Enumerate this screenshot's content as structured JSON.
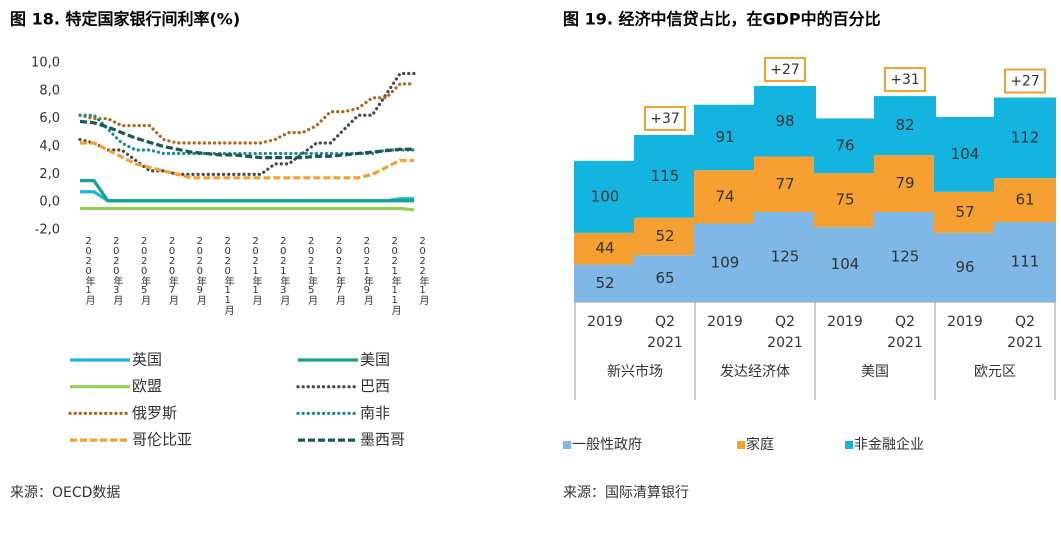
{
  "chart_data": [
    {
      "type": "line",
      "title": "图 18. 特定国家银行间利率(%)",
      "source": "来源：OECD数据",
      "categories": [
        "2020年1月",
        null,
        "2020年3月",
        null,
        "2020年5月",
        null,
        "2020年7月",
        null,
        "2020年9月",
        null,
        "2020年11月",
        null,
        "2021年1月",
        null,
        "2021年3月",
        null,
        "2021年5月",
        null,
        "2021年7月",
        null,
        "2021年9月",
        null,
        "2021年11月",
        null,
        "2022年1月"
      ],
      "ylim": [
        -2,
        10
      ],
      "yticks": [
        {
          "value": 10,
          "label": "10,0"
        },
        {
          "value": 8,
          "label": "8,0"
        },
        {
          "value": 6,
          "label": "6,0"
        },
        {
          "value": 4,
          "label": "4,0"
        },
        {
          "value": 2,
          "label": "2,0"
        },
        {
          "value": 0,
          "label": "0,0"
        },
        {
          "value": -2,
          "label": "-2,0"
        }
      ],
      "grid": false,
      "series": [
        {
          "name": "英国",
          "color": "#1fb5e0",
          "style": "solid",
          "values": [
            0.75,
            0.75,
            0.1,
            0.1,
            0.1,
            0.1,
            0.1,
            0.1,
            0.1,
            0.1,
            0.1,
            0.1,
            0.1,
            0.1,
            0.1,
            0.1,
            0.1,
            0.1,
            0.1,
            0.1,
            0.1,
            0.1,
            0.1,
            0.25,
            0.25
          ]
        },
        {
          "name": "美国",
          "color": "#12a58a",
          "style": "solid",
          "values": [
            1.55,
            1.55,
            0.1,
            0.1,
            0.1,
            0.1,
            0.1,
            0.1,
            0.1,
            0.1,
            0.1,
            0.1,
            0.1,
            0.1,
            0.1,
            0.1,
            0.1,
            0.1,
            0.1,
            0.1,
            0.1,
            0.1,
            0.1,
            0.1,
            0.1
          ]
        },
        {
          "name": "欧盟",
          "color": "#92d050",
          "style": "solid",
          "values": [
            -0.45,
            -0.45,
            -0.45,
            -0.45,
            -0.45,
            -0.45,
            -0.45,
            -0.45,
            -0.45,
            -0.45,
            -0.45,
            -0.45,
            -0.45,
            -0.45,
            -0.45,
            -0.45,
            -0.45,
            -0.45,
            -0.45,
            -0.45,
            -0.45,
            -0.45,
            -0.45,
            -0.45,
            -0.55
          ]
        },
        {
          "name": "巴西",
          "color": "#404a55",
          "style": "dotted",
          "values": [
            4.5,
            4.25,
            3.75,
            3.75,
            3.0,
            2.25,
            2.25,
            2.0,
            2.0,
            2.0,
            2.0,
            2.0,
            2.0,
            2.0,
            2.75,
            2.75,
            3.5,
            4.25,
            4.25,
            5.25,
            6.25,
            6.25,
            7.75,
            9.25,
            9.25
          ]
        },
        {
          "name": "俄罗斯",
          "color": "#b0651a",
          "style": "dotted",
          "values": [
            6.25,
            6.0,
            6.0,
            5.5,
            5.5,
            5.5,
            4.5,
            4.25,
            4.25,
            4.25,
            4.25,
            4.25,
            4.25,
            4.25,
            4.5,
            5.0,
            5.0,
            5.5,
            6.5,
            6.5,
            6.75,
            7.5,
            7.5,
            8.5,
            8.5
          ]
        },
        {
          "name": "南非",
          "color": "#1a8a9a",
          "style": "dotted",
          "values": [
            6.25,
            6.25,
            5.25,
            4.25,
            3.75,
            3.75,
            3.5,
            3.5,
            3.5,
            3.5,
            3.5,
            3.5,
            3.5,
            3.5,
            3.5,
            3.5,
            3.5,
            3.5,
            3.5,
            3.5,
            3.5,
            3.5,
            3.75,
            3.75,
            3.75
          ]
        },
        {
          "name": "哥伦比亚",
          "color": "#f5a030",
          "style": "dashed",
          "values": [
            4.25,
            4.25,
            3.75,
            3.25,
            2.75,
            2.5,
            2.25,
            2.0,
            1.75,
            1.75,
            1.75,
            1.75,
            1.75,
            1.75,
            1.75,
            1.75,
            1.75,
            1.75,
            1.75,
            1.75,
            1.75,
            2.0,
            2.5,
            3.0,
            3.0
          ]
        },
        {
          "name": "墨西哥",
          "color": "#1a5a52",
          "style": "dashed",
          "values": [
            5.8,
            5.7,
            5.4,
            5.0,
            4.6,
            4.3,
            4.0,
            3.8,
            3.6,
            3.5,
            3.4,
            3.4,
            3.3,
            3.2,
            3.2,
            3.2,
            3.2,
            3.3,
            3.3,
            3.4,
            3.5,
            3.6,
            3.7,
            3.8,
            3.8
          ]
        }
      ]
    },
    {
      "type": "stacked-bar",
      "title": "图 19. 经济中信贷占比，在GDP中的百分比",
      "source": "来源：国际清算银行",
      "categories": [
        "2019",
        "Q2 2021",
        "2019",
        "Q2 2021",
        "2019",
        "Q2 2021",
        "2019",
        "Q2 2021"
      ],
      "groups": [
        "新兴市场",
        "发达经济体",
        "美国",
        "欧元区"
      ],
      "series": [
        {
          "name": "一般性政府",
          "color": "#7fb8e6",
          "values": [
            52,
            65,
            109,
            125,
            104,
            125,
            96,
            111
          ]
        },
        {
          "name": "家庭",
          "color": "#f5a030",
          "values": [
            44,
            52,
            74,
            77,
            75,
            79,
            57,
            61
          ]
        },
        {
          "name": "非金融企业",
          "color": "#14b4e0",
          "values": [
            100,
            115,
            91,
            98,
            76,
            82,
            104,
            112
          ]
        }
      ],
      "change": {
        "values": [
          null,
          37,
          null,
          27,
          null,
          31,
          null,
          27
        ],
        "value_labels": [
          null,
          "+37",
          null,
          "+27",
          null,
          "+31",
          null,
          "+27"
        ]
      }
    }
  ]
}
